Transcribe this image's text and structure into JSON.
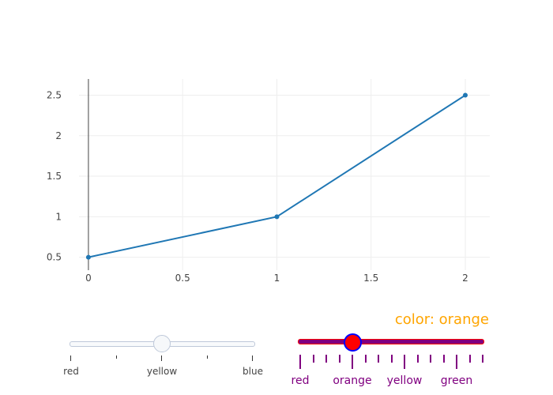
{
  "chart_data": {
    "type": "line",
    "x": [
      0,
      1,
      2
    ],
    "y": [
      0.5,
      1,
      2.5
    ],
    "xlim": [
      -0.05,
      2.13
    ],
    "ylim": [
      0.34,
      2.7
    ],
    "x_ticks": [
      0,
      0.5,
      1,
      1.5,
      2
    ],
    "x_tick_labels": [
      "0",
      "0.5",
      "1",
      "1.5",
      "2"
    ],
    "y_ticks": [
      0.5,
      1,
      1.5,
      2,
      2.5
    ],
    "y_tick_labels": [
      "0.5",
      "1",
      "1.5",
      "2",
      "2.5"
    ],
    "grid": true,
    "line_color": "#1f77b4"
  },
  "sliders": [
    {
      "labels": [
        "red",
        "yellow",
        "blue"
      ],
      "active_index": 1,
      "minor_ticks_between": 1
    },
    {
      "current_prefix": "color: ",
      "current_value": "orange",
      "labels": [
        "red",
        "orange",
        "yellow",
        "green"
      ],
      "active_index": 1,
      "minor_ticks_between": 3,
      "colors": {
        "current_value": "#ffa500",
        "rail_fill": "#800080",
        "rail_border": "#ff0000",
        "grip_fill": "#ff0000",
        "grip_border": "#0000ff",
        "ticks": "#800080",
        "labels": "#800080"
      }
    }
  ]
}
